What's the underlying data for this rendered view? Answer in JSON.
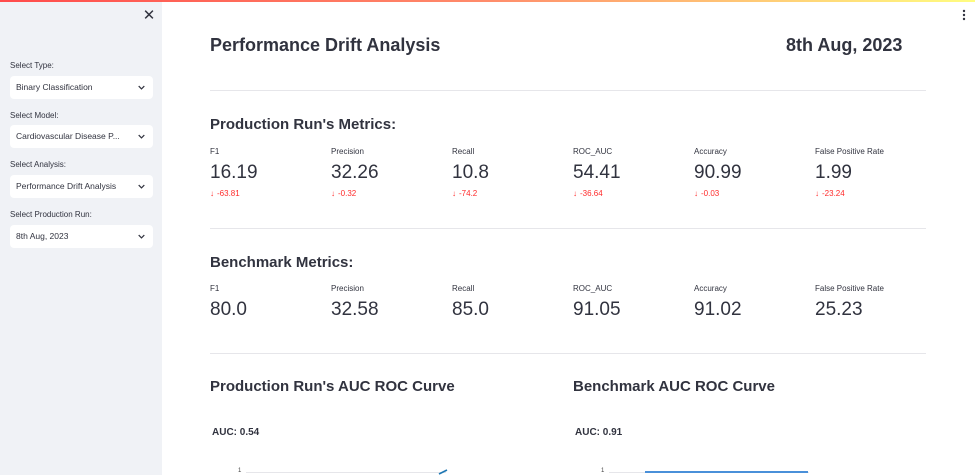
{
  "sidebar": {
    "fields": [
      {
        "label": "Select Type:",
        "value": "Binary Classification"
      },
      {
        "label": "Select Model:",
        "value": "Cardiovascular Disease P..."
      },
      {
        "label": "Select Analysis:",
        "value": "Performance Drift Analysis"
      },
      {
        "label": "Select Production Run:",
        "value": "8th Aug, 2023"
      }
    ]
  },
  "header": {
    "title": "Performance Drift Analysis",
    "date": "8th Aug, 2023"
  },
  "production": {
    "heading": "Production Run's Metrics:",
    "metrics": [
      {
        "label": "F1",
        "value": "16.19",
        "delta": "-63.81"
      },
      {
        "label": "Precision",
        "value": "32.26",
        "delta": "-0.32"
      },
      {
        "label": "Recall",
        "value": "10.8",
        "delta": "-74.2"
      },
      {
        "label": "ROC_AUC",
        "value": "54.41",
        "delta": "-36.64"
      },
      {
        "label": "Accuracy",
        "value": "90.99",
        "delta": "-0.03"
      },
      {
        "label": "False Positive Rate",
        "value": "1.99",
        "delta": "-23.24"
      }
    ]
  },
  "benchmark": {
    "heading": "Benchmark Metrics:",
    "metrics": [
      {
        "label": "F1",
        "value": "80.0"
      },
      {
        "label": "Precision",
        "value": "32.58"
      },
      {
        "label": "Recall",
        "value": "85.0"
      },
      {
        "label": "ROC_AUC",
        "value": "91.05"
      },
      {
        "label": "Accuracy",
        "value": "91.02"
      },
      {
        "label": "False Positive Rate",
        "value": "25.23"
      }
    ]
  },
  "charts": {
    "production": {
      "title": "Production Run's AUC ROC Curve",
      "auc": "AUC: 0.54",
      "tick": "1"
    },
    "benchmark": {
      "title": "Benchmark AUC ROC Curve",
      "auc": "AUC: 0.91",
      "tick": "1"
    }
  },
  "colors": {
    "negative_delta": "#ff2b2b",
    "sidebar_bg": "#f0f2f6",
    "text": "#31333f",
    "curve_production": "#1f77b4",
    "curve_benchmark": "#4a90d9"
  },
  "icons": {
    "close": "close-icon",
    "chevron": "chevron-down-icon",
    "menu": "kebab-menu-icon",
    "delta": "arrow-down-icon"
  }
}
